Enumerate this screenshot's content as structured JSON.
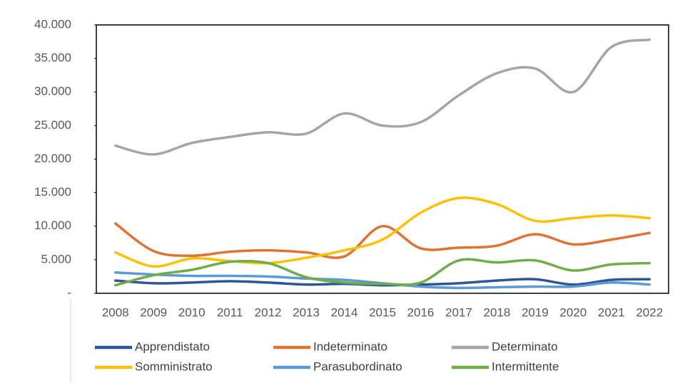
{
  "chart_data": {
    "type": "line",
    "categories": [
      "2008",
      "2009",
      "2010",
      "2011",
      "2012",
      "2013",
      "2014",
      "2015",
      "2016",
      "2017",
      "2018",
      "2019",
      "2020",
      "2021",
      "2022"
    ],
    "series": [
      {
        "name": "Apprendistato",
        "color": "#2e5597",
        "values": [
          1900,
          1500,
          1600,
          1800,
          1600,
          1300,
          1400,
          1200,
          1300,
          1500,
          1900,
          2100,
          1300,
          2000,
          2100
        ]
      },
      {
        "name": "Indeterminato",
        "color": "#e07232",
        "values": [
          10400,
          6300,
          5600,
          6200,
          6400,
          6100,
          5500,
          10000,
          6700,
          6800,
          7100,
          8800,
          7300,
          8000,
          9000
        ]
      },
      {
        "name": "Determinato",
        "color": "#a5a5a5",
        "values": [
          22000,
          20700,
          22400,
          23300,
          24000,
          23800,
          26800,
          25000,
          25500,
          29500,
          32800,
          33500,
          30000,
          36700,
          37800
        ]
      },
      {
        "name": "Somministrato",
        "color": "#ffc000",
        "values": [
          6100,
          4000,
          5200,
          4800,
          4500,
          5300,
          6400,
          8000,
          12000,
          14200,
          13300,
          10800,
          11200,
          11600,
          11200
        ]
      },
      {
        "name": "Parasubordinato",
        "color": "#5b9bd5",
        "values": [
          3100,
          2800,
          2600,
          2600,
          2500,
          2200,
          2000,
          1500,
          1000,
          800,
          900,
          1000,
          1000,
          1600,
          1300
        ]
      },
      {
        "name": "Intermittente",
        "color": "#70ad47",
        "values": [
          1200,
          2700,
          3500,
          4700,
          4500,
          2400,
          1600,
          1400,
          1600,
          4900,
          4600,
          4900,
          3400,
          4300,
          4500
        ]
      }
    ],
    "ylim": [
      0,
      40000
    ],
    "yticks": [
      {
        "value": 0,
        "label": "-"
      },
      {
        "value": 5000,
        "label": "5.000"
      },
      {
        "value": 10000,
        "label": "10.000"
      },
      {
        "value": 15000,
        "label": "15.000"
      },
      {
        "value": 20000,
        "label": "20.000"
      },
      {
        "value": 25000,
        "label": "25.000"
      },
      {
        "value": 30000,
        "label": "30.000"
      },
      {
        "value": 35000,
        "label": "35.000"
      },
      {
        "value": 40000,
        "label": "40.000"
      }
    ],
    "grid": false
  }
}
